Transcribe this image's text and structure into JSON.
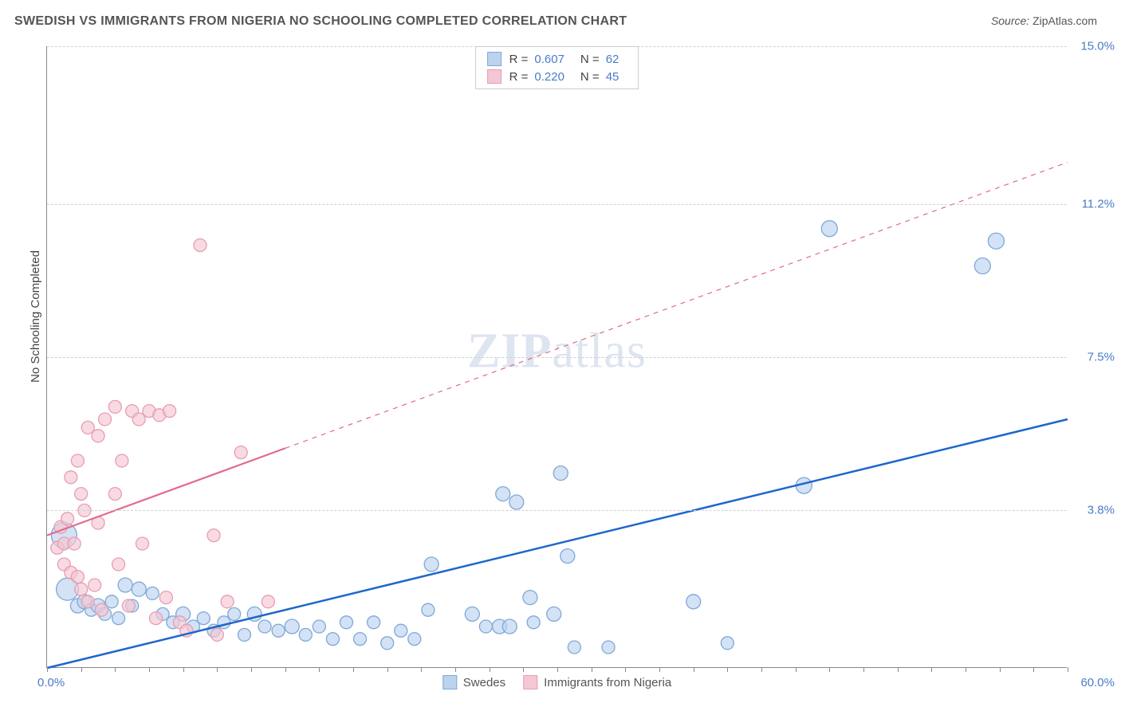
{
  "title": "SWEDISH VS IMMIGRANTS FROM NIGERIA NO SCHOOLING COMPLETED CORRELATION CHART",
  "source_label": "Source:",
  "source_name": "ZipAtlas.com",
  "ylabel": "No Schooling Completed",
  "watermark_a": "ZIP",
  "watermark_b": "atlas",
  "chart": {
    "type": "scatter",
    "x_range": [
      0.0,
      60.0
    ],
    "y_range": [
      0.0,
      15.0
    ],
    "x_min_label": "0.0%",
    "x_max_label": "60.0%",
    "y_ticks": [
      {
        "v": 3.8,
        "label": "3.8%"
      },
      {
        "v": 7.5,
        "label": "7.5%"
      },
      {
        "v": 11.2,
        "label": "11.2%"
      },
      {
        "v": 15.0,
        "label": "15.0%"
      }
    ],
    "x_tick_step": 2.0,
    "grid_color": "#d0d0d0",
    "background_color": "#ffffff",
    "series": [
      {
        "name": "Swedes",
        "stroke": "#7fa8d9",
        "fill": "#bcd3ee",
        "R": "0.607",
        "N": "62",
        "R_val": 0.607,
        "N_val": 62,
        "trend": {
          "solid_from": [
            0.0,
            0.0
          ],
          "solid_to": [
            60.0,
            6.0
          ],
          "color": "#1e66cc",
          "width": 2.5,
          "dashed_to": null
        },
        "points": [
          {
            "x": 1.0,
            "y": 3.2,
            "r": 16
          },
          {
            "x": 1.2,
            "y": 1.9,
            "r": 14
          },
          {
            "x": 1.8,
            "y": 1.5,
            "r": 9
          },
          {
            "x": 2.2,
            "y": 1.6,
            "r": 9
          },
          {
            "x": 2.6,
            "y": 1.4,
            "r": 8
          },
          {
            "x": 3.0,
            "y": 1.5,
            "r": 9
          },
          {
            "x": 3.4,
            "y": 1.3,
            "r": 8
          },
          {
            "x": 3.8,
            "y": 1.6,
            "r": 8
          },
          {
            "x": 4.2,
            "y": 1.2,
            "r": 8
          },
          {
            "x": 4.6,
            "y": 2.0,
            "r": 9
          },
          {
            "x": 5.0,
            "y": 1.5,
            "r": 8
          },
          {
            "x": 5.4,
            "y": 1.9,
            "r": 9
          },
          {
            "x": 6.2,
            "y": 1.8,
            "r": 8
          },
          {
            "x": 6.8,
            "y": 1.3,
            "r": 8
          },
          {
            "x": 7.4,
            "y": 1.1,
            "r": 8
          },
          {
            "x": 8.0,
            "y": 1.3,
            "r": 9
          },
          {
            "x": 8.6,
            "y": 1.0,
            "r": 8
          },
          {
            "x": 9.2,
            "y": 1.2,
            "r": 8
          },
          {
            "x": 9.8,
            "y": 0.9,
            "r": 8
          },
          {
            "x": 10.4,
            "y": 1.1,
            "r": 8
          },
          {
            "x": 11.0,
            "y": 1.3,
            "r": 8
          },
          {
            "x": 11.6,
            "y": 0.8,
            "r": 8
          },
          {
            "x": 12.2,
            "y": 1.3,
            "r": 9
          },
          {
            "x": 12.8,
            "y": 1.0,
            "r": 8
          },
          {
            "x": 13.6,
            "y": 0.9,
            "r": 8
          },
          {
            "x": 14.4,
            "y": 1.0,
            "r": 9
          },
          {
            "x": 15.2,
            "y": 0.8,
            "r": 8
          },
          {
            "x": 16.0,
            "y": 1.0,
            "r": 8
          },
          {
            "x": 16.8,
            "y": 0.7,
            "r": 8
          },
          {
            "x": 17.6,
            "y": 1.1,
            "r": 8
          },
          {
            "x": 18.4,
            "y": 0.7,
            "r": 8
          },
          {
            "x": 19.2,
            "y": 1.1,
            "r": 8
          },
          {
            "x": 20.0,
            "y": 0.6,
            "r": 8
          },
          {
            "x": 20.8,
            "y": 0.9,
            "r": 8
          },
          {
            "x": 21.6,
            "y": 0.7,
            "r": 8
          },
          {
            "x": 22.4,
            "y": 1.4,
            "r": 8
          },
          {
            "x": 22.6,
            "y": 2.5,
            "r": 9
          },
          {
            "x": 25.0,
            "y": 1.3,
            "r": 9
          },
          {
            "x": 25.8,
            "y": 1.0,
            "r": 8
          },
          {
            "x": 26.6,
            "y": 1.0,
            "r": 9
          },
          {
            "x": 26.8,
            "y": 4.2,
            "r": 9
          },
          {
            "x": 27.2,
            "y": 1.0,
            "r": 9
          },
          {
            "x": 27.6,
            "y": 4.0,
            "r": 9
          },
          {
            "x": 28.4,
            "y": 1.7,
            "r": 9
          },
          {
            "x": 28.6,
            "y": 1.1,
            "r": 8
          },
          {
            "x": 29.8,
            "y": 1.3,
            "r": 9
          },
          {
            "x": 31.0,
            "y": 0.5,
            "r": 8
          },
          {
            "x": 30.2,
            "y": 4.7,
            "r": 9
          },
          {
            "x": 30.6,
            "y": 2.7,
            "r": 9
          },
          {
            "x": 33.0,
            "y": 0.5,
            "r": 8
          },
          {
            "x": 38.0,
            "y": 1.6,
            "r": 9
          },
          {
            "x": 40.0,
            "y": 0.6,
            "r": 8
          },
          {
            "x": 44.5,
            "y": 4.4,
            "r": 10
          },
          {
            "x": 46.0,
            "y": 10.6,
            "r": 10
          },
          {
            "x": 55.0,
            "y": 9.7,
            "r": 10
          },
          {
            "x": 55.8,
            "y": 10.3,
            "r": 10
          }
        ]
      },
      {
        "name": "Immigrants from Nigeria",
        "stroke": "#e89db1",
        "fill": "#f5c6d3",
        "R": "0.220",
        "N": "45",
        "R_val": 0.22,
        "N_val": 45,
        "trend": {
          "solid_from": [
            0.0,
            3.2
          ],
          "solid_to": [
            14.0,
            5.3
          ],
          "dashed_to": [
            60.0,
            12.2
          ],
          "color": "#e36a8a",
          "width": 2.2
        },
        "points": [
          {
            "x": 0.6,
            "y": 2.9,
            "r": 8
          },
          {
            "x": 0.8,
            "y": 3.4,
            "r": 8
          },
          {
            "x": 1.0,
            "y": 2.5,
            "r": 8
          },
          {
            "x": 1.0,
            "y": 3.0,
            "r": 8
          },
          {
            "x": 1.2,
            "y": 3.6,
            "r": 8
          },
          {
            "x": 1.4,
            "y": 2.3,
            "r": 8
          },
          {
            "x": 1.4,
            "y": 4.6,
            "r": 8
          },
          {
            "x": 1.6,
            "y": 3.0,
            "r": 8
          },
          {
            "x": 1.8,
            "y": 2.2,
            "r": 8
          },
          {
            "x": 1.8,
            "y": 5.0,
            "r": 8
          },
          {
            "x": 2.0,
            "y": 4.2,
            "r": 8
          },
          {
            "x": 2.0,
            "y": 1.9,
            "r": 8
          },
          {
            "x": 2.2,
            "y": 3.8,
            "r": 8
          },
          {
            "x": 2.4,
            "y": 1.6,
            "r": 8
          },
          {
            "x": 2.4,
            "y": 5.8,
            "r": 8
          },
          {
            "x": 2.8,
            "y": 2.0,
            "r": 8
          },
          {
            "x": 3.0,
            "y": 3.5,
            "r": 8
          },
          {
            "x": 3.0,
            "y": 5.6,
            "r": 8
          },
          {
            "x": 3.2,
            "y": 1.4,
            "r": 8
          },
          {
            "x": 3.4,
            "y": 6.0,
            "r": 8
          },
          {
            "x": 4.0,
            "y": 4.2,
            "r": 8
          },
          {
            "x": 4.0,
            "y": 6.3,
            "r": 8
          },
          {
            "x": 4.2,
            "y": 2.5,
            "r": 8
          },
          {
            "x": 4.4,
            "y": 5.0,
            "r": 8
          },
          {
            "x": 4.8,
            "y": 1.5,
            "r": 8
          },
          {
            "x": 5.0,
            "y": 6.2,
            "r": 8
          },
          {
            "x": 5.4,
            "y": 6.0,
            "r": 8
          },
          {
            "x": 5.6,
            "y": 3.0,
            "r": 8
          },
          {
            "x": 6.0,
            "y": 6.2,
            "r": 8
          },
          {
            "x": 6.4,
            "y": 1.2,
            "r": 8
          },
          {
            "x": 6.6,
            "y": 6.1,
            "r": 8
          },
          {
            "x": 7.0,
            "y": 1.7,
            "r": 8
          },
          {
            "x": 7.2,
            "y": 6.2,
            "r": 8
          },
          {
            "x": 7.8,
            "y": 1.1,
            "r": 8
          },
          {
            "x": 8.2,
            "y": 0.9,
            "r": 8
          },
          {
            "x": 9.0,
            "y": 10.2,
            "r": 8
          },
          {
            "x": 9.8,
            "y": 3.2,
            "r": 8
          },
          {
            "x": 10.0,
            "y": 0.8,
            "r": 8
          },
          {
            "x": 10.6,
            "y": 1.6,
            "r": 8
          },
          {
            "x": 11.4,
            "y": 5.2,
            "r": 8
          },
          {
            "x": 13.0,
            "y": 1.6,
            "r": 8
          }
        ]
      }
    ]
  },
  "legend_bottom": {
    "items": [
      {
        "label": "Swedes",
        "stroke": "#7fa8d9",
        "fill": "#bcd3ee"
      },
      {
        "label": "Immigrants from Nigeria",
        "stroke": "#e89db1",
        "fill": "#f5c6d3"
      }
    ]
  }
}
